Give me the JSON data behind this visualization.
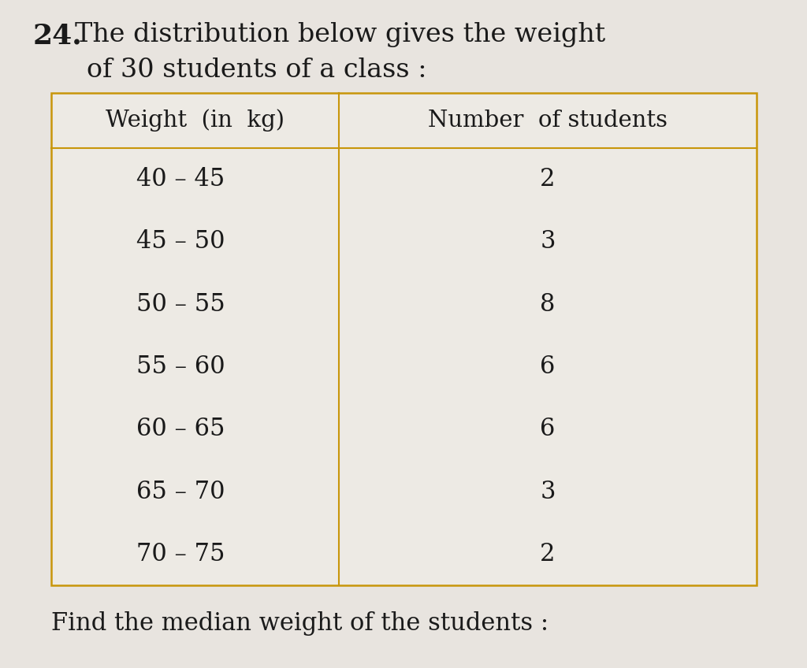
{
  "title_number": "24.",
  "col1_header": "Weight  (in  kg)",
  "col2_header": "Number  of students",
  "rows": [
    [
      "40 – 45",
      "2"
    ],
    [
      "45 – 50",
      "3"
    ],
    [
      "50 – 55",
      "8"
    ],
    [
      "55 – 60",
      "6"
    ],
    [
      "60 – 65",
      "6"
    ],
    [
      "65 – 70",
      "3"
    ],
    [
      "70 – 75",
      "2"
    ]
  ],
  "footer_text": "Find the median weight of the students :",
  "bg_color": "#e8e4df",
  "table_border_color": "#c8960a",
  "table_bg_color": "#edeae4",
  "text_color": "#1a1a1a",
  "font_size_title_num": 26,
  "font_size_title": 24,
  "font_size_table_header": 21,
  "font_size_table_data": 22,
  "font_size_footer": 22
}
